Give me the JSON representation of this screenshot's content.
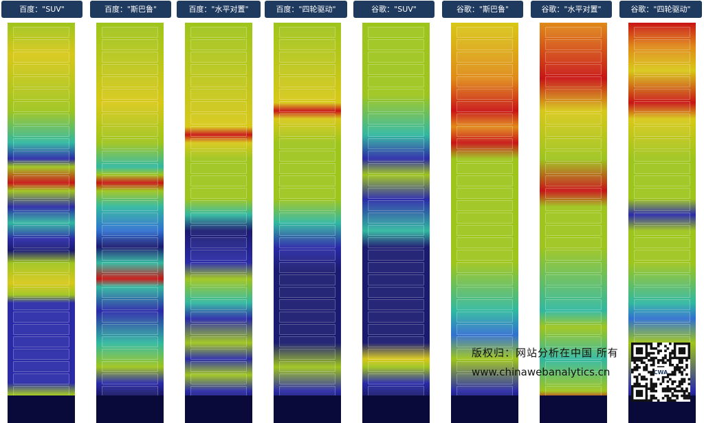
{
  "columns": [
    {
      "label": "百度：\"SUV\""
    },
    {
      "label": "百度：\"斯巴鲁\""
    },
    {
      "label": "百度：\"水平对置\""
    },
    {
      "label": "百度：\"四轮驱动\""
    },
    {
      "label": "谷歌：\"SUV\""
    },
    {
      "label": "谷歌：\"斯巴鲁\""
    },
    {
      "label": "谷歌：\"水平对置\""
    },
    {
      "label": "谷歌：\"四轮驱动\""
    }
  ],
  "watermark": {
    "copyright": "版权归：网站分析在中国 所有",
    "url": "www.chinawebanalytics.cn"
  },
  "qr": {
    "icon": "qr-code-icon",
    "badge": "CWA"
  },
  "colors": {
    "label_bg": "#1f3a5f",
    "heat_high": "#c81414",
    "heat_mid": "#9ec51c",
    "heat_low": "#2a2aa8"
  }
}
